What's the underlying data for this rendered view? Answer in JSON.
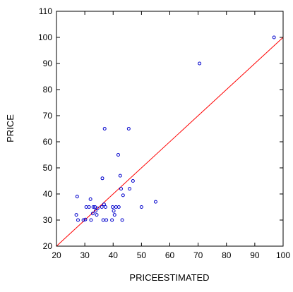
{
  "chart_data": {
    "type": "scatter",
    "title": "",
    "xlabel": "PRICEESTIMATED",
    "ylabel": "PRICE",
    "xlim": [
      20,
      100
    ],
    "ylim": [
      20,
      110
    ],
    "x_ticks": [
      "20",
      "30",
      "40",
      "50",
      "60",
      "70",
      "80",
      "90",
      "100"
    ],
    "y_ticks": [
      "20",
      "30",
      "40",
      "50",
      "60",
      "70",
      "80",
      "90",
      "100",
      "110"
    ],
    "grid": false,
    "legend": "none",
    "reference_line": {
      "type": "45-degree",
      "from": [
        20,
        20
      ],
      "to": [
        100,
        100
      ],
      "color": "#ff0000"
    },
    "point_color": "#0000cc",
    "points": [
      {
        "x": 27.0,
        "y": 32.0
      },
      {
        "x": 27.3,
        "y": 39.0
      },
      {
        "x": 27.6,
        "y": 30.0
      },
      {
        "x": 29.5,
        "y": 30.0
      },
      {
        "x": 30.2,
        "y": 30.2
      },
      {
        "x": 30.5,
        "y": 35.0
      },
      {
        "x": 31.5,
        "y": 35.0
      },
      {
        "x": 32.0,
        "y": 38.0
      },
      {
        "x": 32.2,
        "y": 30.0
      },
      {
        "x": 32.8,
        "y": 32.5
      },
      {
        "x": 33.0,
        "y": 35.0
      },
      {
        "x": 33.6,
        "y": 35.0
      },
      {
        "x": 33.8,
        "y": 33.5
      },
      {
        "x": 34.2,
        "y": 32.0
      },
      {
        "x": 34.5,
        "y": 34.5
      },
      {
        "x": 36.0,
        "y": 35.0
      },
      {
        "x": 36.2,
        "y": 46.0
      },
      {
        "x": 36.5,
        "y": 30.0
      },
      {
        "x": 36.8,
        "y": 36.0
      },
      {
        "x": 37.0,
        "y": 65.0
      },
      {
        "x": 37.3,
        "y": 35.0
      },
      {
        "x": 37.6,
        "y": 30.0
      },
      {
        "x": 39.6,
        "y": 30.0
      },
      {
        "x": 39.8,
        "y": 35.0
      },
      {
        "x": 40.2,
        "y": 33.5
      },
      {
        "x": 40.5,
        "y": 32.0
      },
      {
        "x": 41.0,
        "y": 35.0
      },
      {
        "x": 41.8,
        "y": 55.0
      },
      {
        "x": 42.0,
        "y": 35.0
      },
      {
        "x": 42.5,
        "y": 47.0
      },
      {
        "x": 42.8,
        "y": 42.0
      },
      {
        "x": 43.2,
        "y": 30.0
      },
      {
        "x": 43.5,
        "y": 39.5
      },
      {
        "x": 45.5,
        "y": 65.0
      },
      {
        "x": 45.8,
        "y": 42.0
      },
      {
        "x": 47.0,
        "y": 45.0
      },
      {
        "x": 50.0,
        "y": 35.0
      },
      {
        "x": 55.0,
        "y": 37.0
      },
      {
        "x": 70.5,
        "y": 90.0
      },
      {
        "x": 96.8,
        "y": 100.0
      }
    ]
  }
}
